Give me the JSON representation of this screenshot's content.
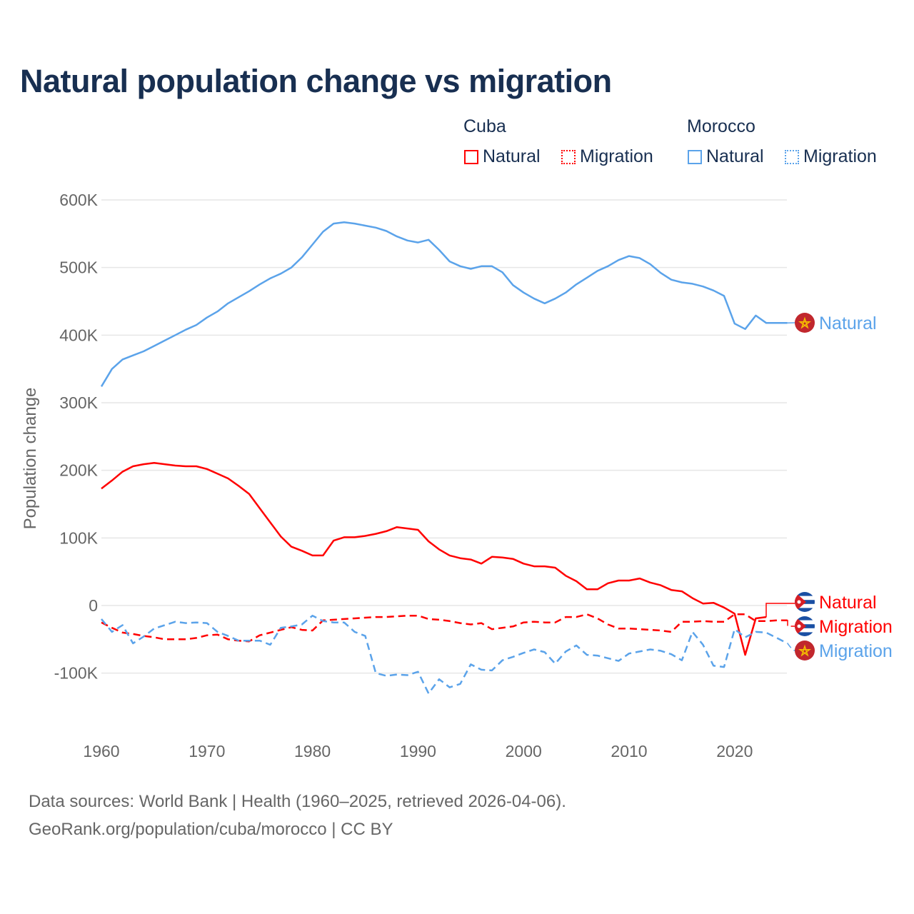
{
  "title": "Natural population change vs migration",
  "legend": {
    "groups": [
      {
        "name": "Cuba",
        "items": [
          {
            "label": "Natural",
            "style": "solid"
          },
          {
            "label": "Migration",
            "style": "dotted"
          }
        ],
        "color": "#ff0000"
      },
      {
        "name": "Morocco",
        "items": [
          {
            "label": "Natural",
            "style": "solid"
          },
          {
            "label": "Migration",
            "style": "dotted"
          }
        ],
        "color": "#5ba3ea"
      }
    ]
  },
  "footer": {
    "line1": "Data sources: World Bank | Health (1960–2025, retrieved 2026-04-06).",
    "line2": "GeoRank.org/population/cuba/morocco | CC BY"
  },
  "chart_data": {
    "type": "line",
    "title": "Natural population change vs migration",
    "xlabel": "",
    "ylabel": "Population change",
    "xlim": [
      1960,
      2025
    ],
    "ylim": [
      -100000,
      600000
    ],
    "grid": true,
    "legend_position": "top-right",
    "x_ticks": [
      1960,
      1970,
      1980,
      1990,
      2000,
      2010,
      2020
    ],
    "x_tick_labels": [
      "1960",
      "1970",
      "1980",
      "1990",
      "2000",
      "2010",
      "2020"
    ],
    "y_ticks": [
      600000,
      500000,
      400000,
      300000,
      200000,
      100000,
      0,
      -100000
    ],
    "y_tick_labels": [
      "600K",
      "500K",
      "400K",
      "300K",
      "200K",
      "100K",
      "0",
      "-100K"
    ],
    "x_start": 1960,
    "series": [
      {
        "name": "Morocco Natural",
        "end_label": "Natural",
        "flag": "morocco",
        "color": "#5ba3ea",
        "dash": "solid",
        "values": [
          324,
          350,
          364,
          370,
          376,
          384,
          392,
          400,
          408,
          415,
          426,
          435,
          447,
          456,
          465,
          475,
          484,
          491,
          500,
          515,
          534,
          553,
          565,
          567,
          565,
          562,
          559,
          554,
          546,
          540,
          537,
          541,
          526,
          509,
          502,
          498,
          502,
          502,
          493,
          474,
          463,
          454,
          447,
          454,
          463,
          475,
          485,
          495,
          502,
          511,
          517,
          514,
          505,
          492,
          482,
          478,
          476,
          472,
          466,
          458,
          417,
          409,
          429,
          418,
          418,
          418
        ]
      },
      {
        "name": "Cuba Natural",
        "end_label": "Natural",
        "flag": "cuba",
        "color": "#ff0000",
        "dash": "solid",
        "values": [
          173,
          185,
          198,
          206,
          209,
          211,
          209,
          207,
          206,
          206,
          202,
          195,
          188,
          177,
          165,
          144,
          123,
          102,
          87,
          81,
          74,
          74,
          96,
          101,
          101,
          103,
          106,
          110,
          116,
          114,
          112,
          95,
          83,
          74,
          70,
          68,
          62,
          72,
          71,
          69,
          62,
          58,
          58,
          56,
          44,
          36,
          24,
          24,
          33,
          37,
          37,
          40,
          34,
          30,
          23,
          21,
          11,
          3,
          4,
          -3,
          -12,
          -73,
          -19,
          -17
        ]
      },
      {
        "name": "Cuba Migration",
        "end_label": "Migration",
        "flag": "cuba",
        "color": "#ff0000",
        "dash": "dashed",
        "values": [
          -25,
          -33,
          -40,
          -42,
          -45,
          -47,
          -50,
          -50,
          -50,
          -48,
          -44,
          -43,
          -50,
          -52,
          -53,
          -44,
          -40,
          -36,
          -32,
          -36,
          -37,
          -22,
          -21,
          -20,
          -19,
          -18,
          -17,
          -17,
          -16,
          -15,
          -15,
          -20,
          -21,
          -23,
          -26,
          -28,
          -26,
          -35,
          -33,
          -31,
          -25,
          -24,
          -25,
          -25,
          -17,
          -17,
          -13,
          -19,
          -28,
          -34,
          -34,
          -35,
          -36,
          -37,
          -39,
          -24,
          -24,
          -23,
          -24,
          -24,
          -13,
          -13,
          -23,
          -23,
          -22,
          -22
        ]
      },
      {
        "name": "Morocco Migration",
        "end_label": "Migration",
        "flag": "morocco",
        "color": "#5ba3ea",
        "dash": "dashed",
        "values": [
          -20,
          -39,
          -29,
          -56,
          -46,
          -34,
          -29,
          -24,
          -26,
          -25,
          -26,
          -39,
          -45,
          -52,
          -52,
          -52,
          -58,
          -33,
          -31,
          -28,
          -15,
          -23,
          -25,
          -25,
          -39,
          -45,
          -100,
          -104,
          -102,
          -103,
          -98,
          -130,
          -109,
          -121,
          -116,
          -87,
          -95,
          -96,
          -81,
          -76,
          -70,
          -65,
          -69,
          -86,
          -68,
          -59,
          -73,
          -74,
          -78,
          -82,
          -71,
          -68,
          -65,
          -67,
          -72,
          -81,
          -39,
          -58,
          -89,
          -91,
          -35,
          -47,
          -39,
          -40,
          -48,
          -56
        ]
      }
    ],
    "value_unit": "thousands"
  }
}
